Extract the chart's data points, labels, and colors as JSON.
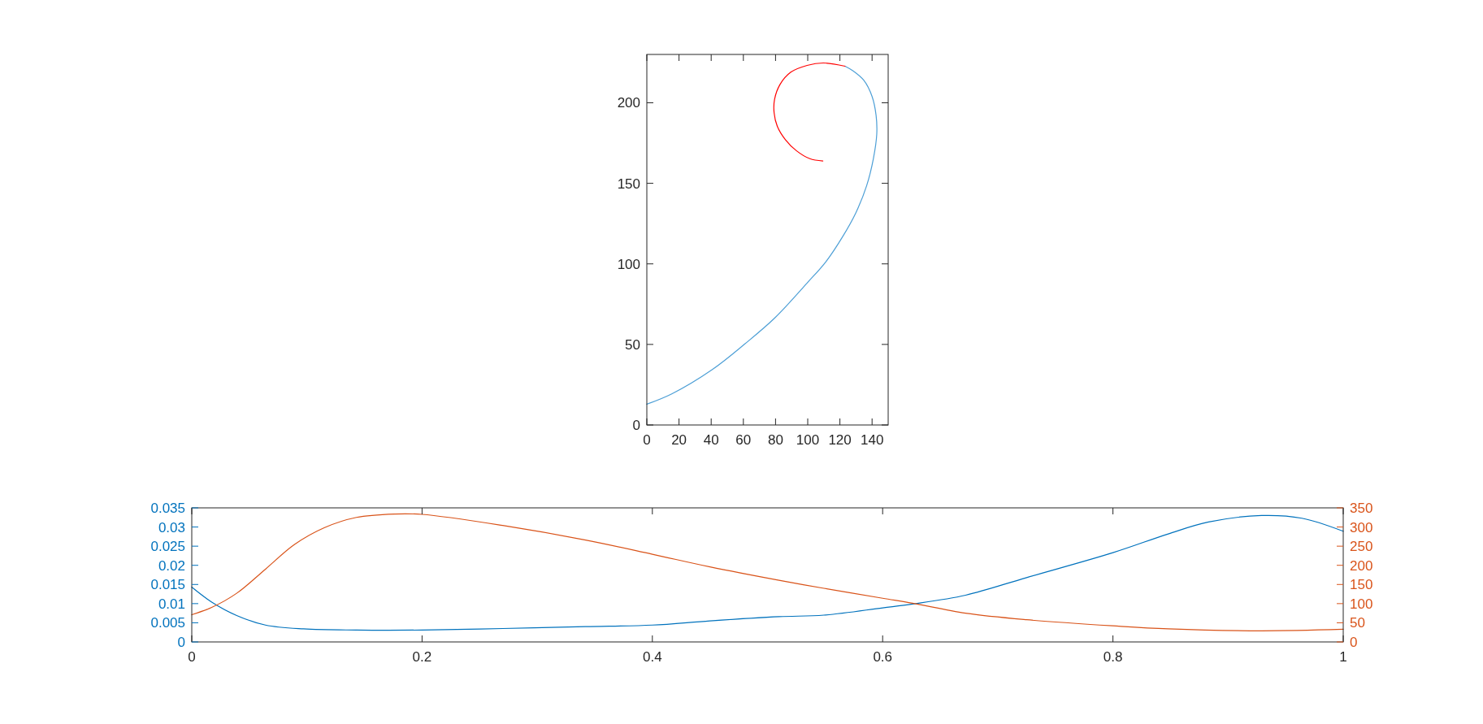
{
  "chart_data": [
    {
      "type": "line",
      "xlim": [
        0,
        150
      ],
      "ylim": [
        0,
        230
      ],
      "xticks": [
        0,
        20,
        40,
        60,
        80,
        100,
        120,
        140
      ],
      "yticks": [
        0,
        50,
        100,
        150,
        200
      ],
      "series": [
        {
          "color": "#4d9fd6",
          "x": [
            0,
            15.5,
            40.7,
            60.9,
            79.4,
            99.6,
            111.4,
            121.5,
            129.9,
            136.6,
            140.8,
            142.9,
            142.5,
            140,
            134.9,
            128.2,
            123.2
          ],
          "values": [
            12.9,
            19.3,
            34.4,
            50.3,
            66.3,
            88.1,
            101.5,
            116.6,
            131.7,
            148.5,
            165.3,
            180.4,
            192.1,
            203.9,
            213.9,
            219.8,
            222.7
          ]
        },
        {
          "color": "#ff0000",
          "x": [
            123.2,
            109.7,
            99.6,
            89.5,
            82.8,
            79.4,
            79.1,
            81.1,
            86.2,
            92.9,
            101.3,
            109.4
          ],
          "values": [
            222.7,
            224.7,
            223.2,
            219,
            211.4,
            202.2,
            193.8,
            185.4,
            177,
            170.3,
            165.3,
            163.9
          ]
        }
      ]
    },
    {
      "type": "line",
      "xlim": [
        0,
        1
      ],
      "xticks": [
        0,
        0.2,
        0.4,
        0.6,
        0.8,
        1
      ],
      "ylim": [
        0,
        0.035
      ],
      "yticks": [
        0,
        0.005,
        0.01,
        0.015,
        0.02,
        0.025,
        0.03,
        0.035
      ],
      "y2lim": [
        0,
        350
      ],
      "y2ticks": [
        0,
        50,
        100,
        150,
        200,
        250,
        300,
        350
      ],
      "series": [
        {
          "color": "#0072bd",
          "x": [
            0,
            0.0173,
            0.039,
            0.064,
            0.097,
            0.143,
            0.2,
            0.27,
            0.342,
            0.4,
            0.45,
            0.51,
            0.549,
            0.6,
            0.626,
            0.672,
            0.725,
            0.8,
            0.848,
            0.883,
            0.929,
            0.964,
            1
          ],
          "values": [
            0.0143,
            0.0104,
            0.0069,
            0.0044,
            0.0034,
            0.0031,
            0.0031,
            0.0035,
            0.004,
            0.0044,
            0.0055,
            0.0066,
            0.007,
            0.0089,
            0.0099,
            0.0122,
            0.0168,
            0.0233,
            0.0282,
            0.0313,
            0.033,
            0.0323,
            0.0289
          ]
        },
        {
          "color": "#d95319",
          "axis": "y2",
          "x": [
            0,
            0.0173,
            0.039,
            0.064,
            0.089,
            0.115,
            0.143,
            0.176,
            0.2,
            0.27,
            0.342,
            0.4,
            0.45,
            0.51,
            0.549,
            0.6,
            0.626,
            0.672,
            0.725,
            0.8,
            0.848,
            0.929,
            1
          ],
          "values": [
            71,
            90,
            127,
            190,
            254,
            298,
            325,
            334,
            333,
            304,
            266,
            229,
            196,
            161,
            140,
            114,
            101,
            75,
            58,
            42,
            34,
            29,
            33
          ]
        }
      ]
    }
  ]
}
